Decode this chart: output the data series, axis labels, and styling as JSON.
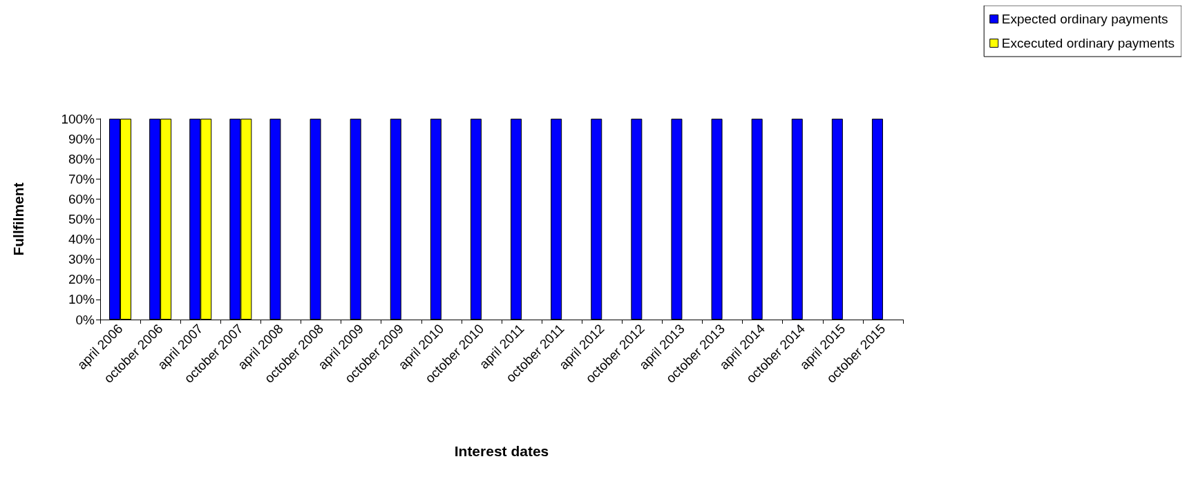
{
  "chart_data": {
    "type": "bar",
    "xlabel": "Interest dates",
    "ylabel": "Fullfilment",
    "categories": [
      "april 2006",
      "october 2006",
      "april 2007",
      "october 2007",
      "april 2008",
      "october 2008",
      "april 2009",
      "october 2009",
      "april 2010",
      "october 2010",
      "april 2011",
      "october 2011",
      "april 2012",
      "october 2012",
      "april 2013",
      "october 2013",
      "april 2014",
      "october 2014",
      "april 2015",
      "october 2015"
    ],
    "series": [
      {
        "name": "Expected ordinary payments",
        "color": "#0000ff",
        "values": [
          100,
          100,
          100,
          100,
          100,
          100,
          100,
          100,
          100,
          100,
          100,
          100,
          100,
          100,
          100,
          100,
          100,
          100,
          100,
          100
        ]
      },
      {
        "name": "Excecuted ordinary payments",
        "color": "#ffff00",
        "values": [
          100,
          100,
          100,
          100,
          null,
          null,
          null,
          null,
          null,
          null,
          null,
          null,
          null,
          null,
          null,
          null,
          null,
          null,
          null,
          null
        ]
      }
    ],
    "ylim": [
      0,
      100
    ],
    "yticks": [
      {
        "value": 0,
        "label": "0%"
      },
      {
        "value": 10,
        "label": "10%"
      },
      {
        "value": 20,
        "label": "20%"
      },
      {
        "value": 30,
        "label": "30%"
      },
      {
        "value": 40,
        "label": "40%"
      },
      {
        "value": 50,
        "label": "50%"
      },
      {
        "value": 60,
        "label": "60%"
      },
      {
        "value": 70,
        "label": "70%"
      },
      {
        "value": 80,
        "label": "80%"
      },
      {
        "value": 90,
        "label": "90%"
      },
      {
        "value": 100,
        "label": "100%"
      }
    ],
    "grid": false,
    "legend": "top right"
  }
}
